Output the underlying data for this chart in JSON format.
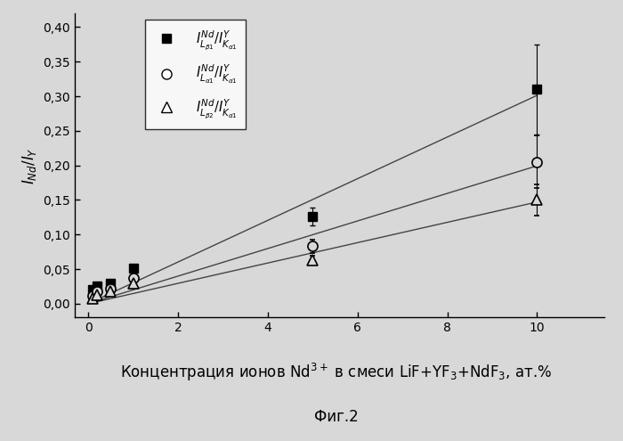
{
  "x_values": [
    0.1,
    0.2,
    0.5,
    1.0,
    5.0,
    10.0
  ],
  "series1_y": [
    0.02,
    0.025,
    0.03,
    0.052,
    0.126,
    0.31
  ],
  "series1_yerr": [
    0.004,
    0.003,
    0.003,
    0.005,
    0.013,
    0.065
  ],
  "series2_y": [
    0.012,
    0.018,
    0.022,
    0.037,
    0.083,
    0.205
  ],
  "series2_yerr": [
    0.002,
    0.002,
    0.003,
    0.004,
    0.01,
    0.038
  ],
  "series3_y": [
    0.008,
    0.013,
    0.018,
    0.03,
    0.063,
    0.15
  ],
  "series3_yerr": [
    0.002,
    0.002,
    0.002,
    0.003,
    0.007,
    0.022
  ],
  "ylim": [
    -0.02,
    0.42
  ],
  "xlim": [
    -0.3,
    11.5
  ],
  "yticks": [
    0.0,
    0.05,
    0.1,
    0.15,
    0.2,
    0.25,
    0.3,
    0.35,
    0.4
  ],
  "xticks": [
    0,
    2,
    4,
    6,
    8,
    10
  ],
  "line_color": "#444444",
  "fig_bg_color": "#d8d8d8",
  "plot_bg_color": "#d8d8d8"
}
